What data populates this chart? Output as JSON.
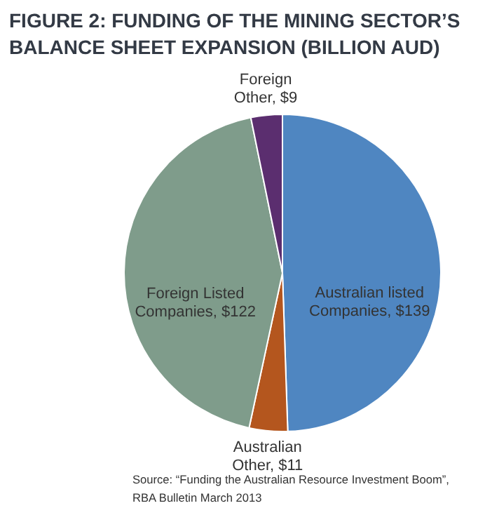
{
  "chart_data": {
    "type": "pie",
    "title": "FIGURE 2: FUNDING OF THE MINING SECTOR’S BALANCE SHEET EXPANSION (BILLION AUD)",
    "categories": [
      "Australian listed Companies",
      "Australian Other",
      "Foreign Listed Companies",
      "Foreign Other"
    ],
    "values": [
      139,
      11,
      122,
      9
    ],
    "colors": [
      "#4f86c1",
      "#b4561e",
      "#7f9c8b",
      "#5b2e6f"
    ],
    "value_labels": [
      "$139",
      "$11",
      "$122",
      "$9"
    ],
    "annotations": [
      "Source: “Funding the Australian Resource Investment Boom”,\nRBA Bulletin March 2013"
    ]
  }
}
